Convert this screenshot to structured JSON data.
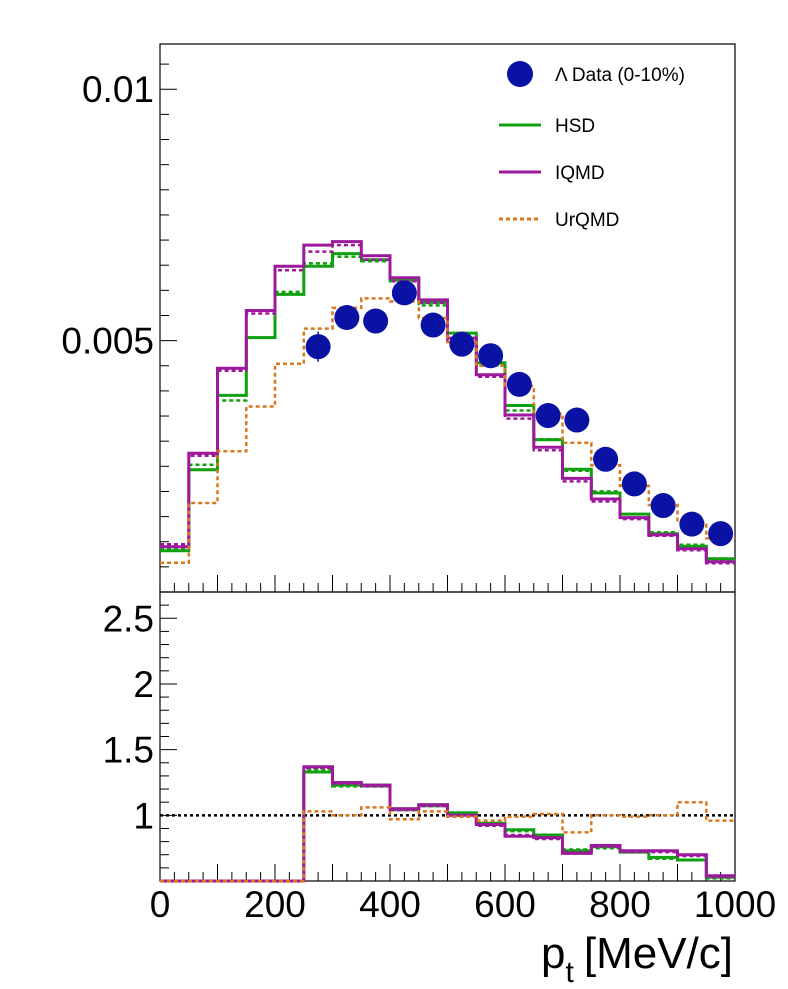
{
  "chart_data": [
    {
      "type": "step-histogram-with-points",
      "panel": "top",
      "ylim": [
        0.0,
        0.0109
      ],
      "xlim": [
        0,
        1000
      ],
      "y_ticks": [
        {
          "value": 0.005,
          "label": "0.005"
        },
        {
          "value": 0.01,
          "label": "0.01"
        }
      ],
      "bin_edges": [
        0,
        50,
        100,
        150,
        200,
        250,
        300,
        350,
        400,
        450,
        500,
        550,
        600,
        650,
        700,
        750,
        800,
        850,
        900,
        950,
        1000
      ],
      "series": [
        {
          "name": "HSD",
          "legend": "HSD",
          "color": "#10a010",
          "style": "solid",
          "values": [
            0.00082,
            0.00243,
            0.00391,
            0.00506,
            0.00592,
            0.00648,
            0.00673,
            0.00661,
            0.00621,
            0.00576,
            0.00515,
            0.00456,
            0.00371,
            0.00303,
            0.00244,
            0.00197,
            0.00155,
            0.00116,
            0.00091,
            0.00066
          ],
          "dotted_values": [
            0.00087,
            0.00253,
            0.00381,
            0.00506,
            0.00597,
            0.00654,
            0.00667,
            0.00658,
            0.00618,
            0.0057,
            0.00505,
            0.00451,
            0.00361,
            0.00304,
            0.00241,
            0.002,
            0.00155,
            0.00119,
            0.00094,
            0.00063
          ]
        },
        {
          "name": "IQMD",
          "legend": "IQMD",
          "color": "#9d189d",
          "style": "solid",
          "values": [
            0.0009,
            0.00276,
            0.00445,
            0.0056,
            0.00648,
            0.0069,
            0.00697,
            0.00669,
            0.00625,
            0.00581,
            0.00505,
            0.00432,
            0.00352,
            0.00288,
            0.00226,
            0.00185,
            0.00148,
            0.00114,
            0.00086,
            0.0006
          ],
          "dotted_values": [
            0.00095,
            0.00271,
            0.0044,
            0.00554,
            0.0064,
            0.00677,
            0.0069,
            0.00661,
            0.00618,
            0.00575,
            0.00496,
            0.00428,
            0.00345,
            0.00282,
            0.0022,
            0.0018,
            0.00145,
            0.00112,
            0.00083,
            0.00057
          ]
        },
        {
          "name": "UrQMD",
          "legend": "UrQMD",
          "color": "#db781e",
          "style": "dotted",
          "values": [
            0.00058,
            0.00177,
            0.0028,
            0.00369,
            0.00454,
            0.00524,
            0.00565,
            0.00584,
            0.00578,
            0.00545,
            0.00497,
            0.0045,
            0.0041,
            0.00355,
            0.00297,
            0.00252,
            0.00211,
            0.00173,
            0.00138,
            0.00107
          ]
        },
        {
          "name": "Lambda Data (0-10%)",
          "legend": "Λ Data (0-10%)",
          "color": "#0a12a4",
          "style": "points",
          "x": [
            275,
            325,
            375,
            425,
            475,
            525,
            575,
            625,
            675,
            725,
            775,
            825,
            875,
            925,
            975
          ],
          "values": [
            0.00488,
            0.00546,
            0.00539,
            0.00595,
            0.00531,
            0.00493,
            0.0047,
            0.00413,
            0.00351,
            0.00342,
            0.00264,
            0.00215,
            0.00172,
            0.00135,
            0.00116
          ],
          "errors": [
            0.0003,
            0.00016,
            0.00012,
            0.0001,
            0.0001,
            9e-05,
            8e-05,
            7e-05,
            6e-05,
            6e-05,
            5e-05,
            4e-05,
            4e-05,
            3e-05,
            3e-05
          ]
        }
      ],
      "legend_position": "top-right"
    },
    {
      "type": "step-ratio",
      "panel": "bottom",
      "ylim": [
        0.5,
        2.7
      ],
      "xlim": [
        0,
        1000
      ],
      "y_ticks": [
        {
          "value": 1,
          "label": "1"
        },
        {
          "value": 1.5,
          "label": "1.5"
        },
        {
          "value": 2,
          "label": "2"
        },
        {
          "value": 2.5,
          "label": "2.5"
        }
      ],
      "reference_line": 1.0,
      "bin_edges": [
        0,
        50,
        100,
        150,
        200,
        250,
        300,
        350,
        400,
        450,
        500,
        550,
        600,
        650,
        700,
        750,
        800,
        850,
        900,
        950,
        1000
      ],
      "series": [
        {
          "name": "HSD",
          "color": "#10a010",
          "style": "solid",
          "values": [
            0.5,
            0.5,
            0.5,
            0.5,
            0.5,
            1.33,
            1.23,
            1.23,
            1.05,
            1.08,
            1.02,
            0.94,
            0.89,
            0.85,
            0.73,
            0.76,
            0.72,
            0.68,
            0.66,
            0.53
          ],
          "dotted_values": [
            0.5,
            0.5,
            0.5,
            0.5,
            0.5,
            1.35,
            1.22,
            1.22,
            1.04,
            1.07,
            1.01,
            0.93,
            0.88,
            0.84,
            0.74,
            0.75,
            0.73,
            0.67,
            0.66,
            0.52
          ]
        },
        {
          "name": "IQMD",
          "color": "#9d189d",
          "style": "solid",
          "values": [
            0.5,
            0.5,
            0.5,
            0.5,
            0.5,
            1.37,
            1.25,
            1.23,
            1.05,
            1.08,
            1.0,
            0.93,
            0.84,
            0.83,
            0.71,
            0.77,
            0.73,
            0.73,
            0.7,
            0.54
          ],
          "dotted_values": [
            0.5,
            0.5,
            0.5,
            0.5,
            0.5,
            1.36,
            1.24,
            1.22,
            1.04,
            1.07,
            0.99,
            0.92,
            0.85,
            0.82,
            0.72,
            0.76,
            0.72,
            0.72,
            0.69,
            0.53
          ]
        },
        {
          "name": "UrQMD",
          "color": "#db781e",
          "style": "dotted",
          "values": [
            0.5,
            0.5,
            0.5,
            0.5,
            0.5,
            1.03,
            1.0,
            1.06,
            0.97,
            1.03,
            0.99,
            0.96,
            0.99,
            1.01,
            0.87,
            1.0,
            0.99,
            1.0,
            1.1,
            0.96
          ]
        }
      ]
    }
  ],
  "x_axis": {
    "ticks": [
      {
        "value": 0,
        "label": "0"
      },
      {
        "value": 200,
        "label": "200"
      },
      {
        "value": 400,
        "label": "400"
      },
      {
        "value": 600,
        "label": "600"
      },
      {
        "value": 800,
        "label": "800"
      },
      {
        "value": 1000,
        "label": "1000"
      }
    ],
    "title_main": "p",
    "title_sub": "t",
    "title_unit": "[MeV/c]"
  },
  "legend": [
    {
      "label": "Λ Data (0-10%)",
      "marker": "dot",
      "color": "#0a12a4"
    },
    {
      "label": "HSD",
      "marker": "line",
      "color": "#10a010"
    },
    {
      "label": "IQMD",
      "marker": "line",
      "color": "#9d189d"
    },
    {
      "label": "UrQMD",
      "marker": "dotted",
      "color": "#db781e"
    }
  ]
}
